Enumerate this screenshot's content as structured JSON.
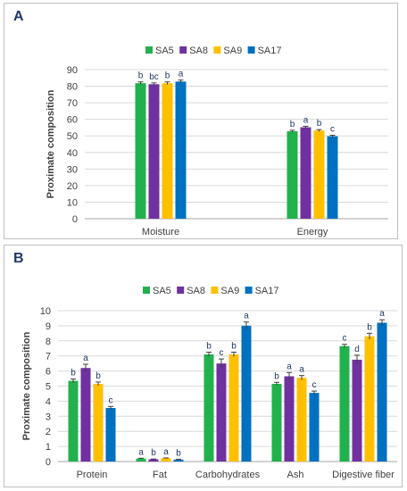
{
  "panels": {
    "a": {
      "label": "A"
    },
    "b": {
      "label": "B"
    }
  },
  "chart_data": [
    {
      "type": "bar",
      "panel": "A",
      "ylabel": "Proximate composition",
      "ylim": [
        0,
        90
      ],
      "yticks": [
        0,
        10,
        20,
        30,
        40,
        50,
        60,
        70,
        80,
        90
      ],
      "categories": [
        "Moisture",
        "Energy"
      ],
      "legend_position": "top",
      "series": [
        {
          "name": "SA5",
          "color": "#22b14c",
          "values": [
            81.8,
            52.8
          ],
          "errors": [
            0.8,
            0.6
          ],
          "letters": [
            "b",
            "b"
          ]
        },
        {
          "name": "SA8",
          "color": "#7030a0",
          "values": [
            81.2,
            55.2
          ],
          "errors": [
            0.8,
            0.6
          ],
          "letters": [
            "bc",
            "a"
          ]
        },
        {
          "name": "SA9",
          "color": "#ffc000",
          "values": [
            81.8,
            53.2
          ],
          "errors": [
            0.8,
            0.6
          ],
          "letters": [
            "b",
            "b"
          ]
        },
        {
          "name": "SA17",
          "color": "#0070c0",
          "values": [
            82.8,
            49.8
          ],
          "errors": [
            0.9,
            0.6
          ],
          "letters": [
            "a",
            "c"
          ]
        }
      ]
    },
    {
      "type": "bar",
      "panel": "B",
      "ylabel": "Proximate composition",
      "ylim": [
        0,
        10
      ],
      "yticks": [
        0,
        1,
        2,
        3,
        4,
        5,
        6,
        7,
        8,
        9,
        10
      ],
      "categories": [
        "Protein",
        "Fat",
        "Carbohydrates",
        "Ash",
        "Digestive fiber"
      ],
      "legend_position": "top",
      "series": [
        {
          "name": "SA5",
          "color": "#22b14c",
          "values": [
            5.35,
            0.2,
            7.1,
            5.15,
            7.65
          ],
          "errors": [
            0.12,
            0.02,
            0.15,
            0.1,
            0.12
          ],
          "letters": [
            "b",
            "a",
            "b",
            "b",
            "c"
          ]
        },
        {
          "name": "SA8",
          "color": "#7030a0",
          "values": [
            6.2,
            0.15,
            6.5,
            5.65,
            6.75
          ],
          "errors": [
            0.25,
            0.02,
            0.3,
            0.25,
            0.3
          ],
          "letters": [
            "a",
            "b",
            "c",
            "a",
            "d"
          ]
        },
        {
          "name": "SA9",
          "color": "#ffc000",
          "values": [
            5.15,
            0.22,
            7.1,
            5.55,
            8.3
          ],
          "errors": [
            0.12,
            0.02,
            0.15,
            0.15,
            0.2
          ],
          "letters": [
            "b",
            "a",
            "b",
            "a",
            "b"
          ]
        },
        {
          "name": "SA17",
          "color": "#0070c0",
          "values": [
            3.55,
            0.13,
            9.0,
            4.55,
            9.2
          ],
          "errors": [
            0.1,
            0.02,
            0.25,
            0.12,
            0.2
          ],
          "letters": [
            "c",
            "b",
            "a",
            "c",
            "a"
          ]
        }
      ]
    }
  ]
}
